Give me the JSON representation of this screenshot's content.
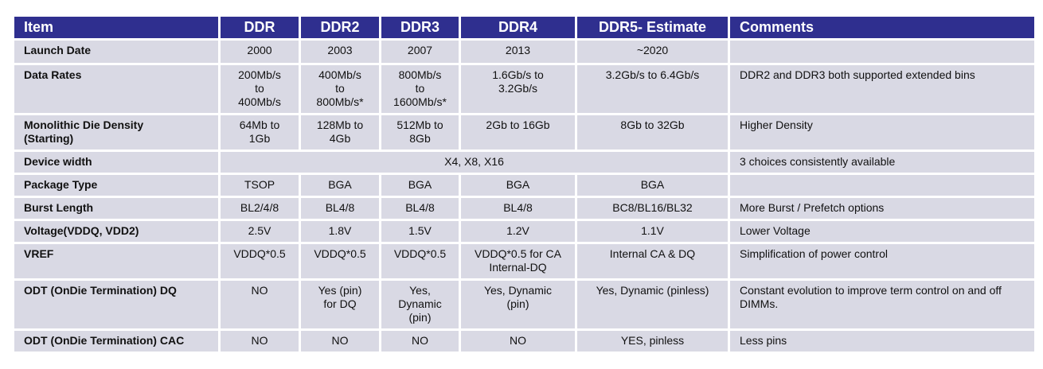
{
  "header": [
    "Item",
    "DDR",
    "DDR2",
    "DDR3",
    "DDR4",
    "DDR5- Estimate",
    "Comments"
  ],
  "rows": [
    {
      "item": [
        "Launch Date"
      ],
      "ddr": [
        "2000"
      ],
      "ddr2": [
        "2003"
      ],
      "ddr3": [
        "2007"
      ],
      "ddr4": [
        "2013"
      ],
      "ddr5": [
        "~2020"
      ],
      "comment": [
        ""
      ]
    },
    {
      "item": [
        "Data Rates"
      ],
      "ddr": [
        "200Mb/s",
        "to",
        "400Mb/s"
      ],
      "ddr2": [
        "400Mb/s",
        "to",
        "800Mb/s*"
      ],
      "ddr3": [
        "800Mb/s",
        "to",
        "1600Mb/s*"
      ],
      "ddr4": [
        "1.6Gb/s to",
        "3.2Gb/s"
      ],
      "ddr5": [
        "3.2Gb/s to 6.4Gb/s"
      ],
      "comment": [
        "DDR2 and DDR3 both supported extended bins"
      ]
    },
    {
      "item": [
        "Monolithic Die Density",
        "(Starting)"
      ],
      "ddr": [
        "64Mb to",
        "1Gb"
      ],
      "ddr2": [
        "128Mb to",
        "4Gb"
      ],
      "ddr3": [
        "512Mb to",
        "8Gb"
      ],
      "ddr4": [
        "2Gb to 16Gb"
      ],
      "ddr5": [
        "8Gb to 32Gb"
      ],
      "comment": [
        "Higher Density"
      ]
    },
    {
      "item": [
        "Device width"
      ],
      "span": [
        "X4, X8, X16"
      ],
      "comment": [
        "3 choices consistently available"
      ]
    },
    {
      "item": [
        "Package Type"
      ],
      "ddr": [
        "TSOP"
      ],
      "ddr2": [
        "BGA"
      ],
      "ddr3": [
        "BGA"
      ],
      "ddr4": [
        "BGA"
      ],
      "ddr5": [
        "BGA"
      ],
      "comment": [
        ""
      ]
    },
    {
      "item": [
        "Burst Length"
      ],
      "ddr": [
        "BL2/4/8"
      ],
      "ddr2": [
        "BL4/8"
      ],
      "ddr3": [
        "BL4/8"
      ],
      "ddr4": [
        "BL4/8"
      ],
      "ddr5": [
        "BC8/BL16/BL32"
      ],
      "comment": [
        "More Burst / Prefetch options"
      ]
    },
    {
      "item": [
        "Voltage(VDDQ, VDD2)"
      ],
      "ddr": [
        "2.5V"
      ],
      "ddr2": [
        "1.8V"
      ],
      "ddr3": [
        "1.5V"
      ],
      "ddr4": [
        "1.2V"
      ],
      "ddr5": [
        "1.1V"
      ],
      "comment": [
        "Lower Voltage"
      ]
    },
    {
      "item": [
        "VREF"
      ],
      "ddr": [
        "VDDQ*0.5"
      ],
      "ddr2": [
        "VDDQ*0.5"
      ],
      "ddr3": [
        "VDDQ*0.5"
      ],
      "ddr4": [
        "VDDQ*0.5 for CA",
        "Internal-DQ"
      ],
      "ddr5": [
        "Internal CA & DQ"
      ],
      "comment": [
        "Simplification of power control"
      ]
    },
    {
      "item": [
        "ODT (OnDie Termination) DQ"
      ],
      "ddr": [
        "NO"
      ],
      "ddr2": [
        "Yes (pin)",
        "for DQ"
      ],
      "ddr3": [
        "Yes,",
        "Dynamic",
        "(pin)"
      ],
      "ddr4": [
        "Yes, Dynamic",
        "(pin)"
      ],
      "ddr5": [
        "Yes, Dynamic (pinless)"
      ],
      "comment": [
        "Constant evolution to improve term control on and off",
        "DIMMs."
      ]
    },
    {
      "item": [
        "ODT (OnDie Termination) CAC"
      ],
      "ddr": [
        "NO"
      ],
      "ddr2": [
        "NO"
      ],
      "ddr3": [
        "NO"
      ],
      "ddr4": [
        "NO"
      ],
      "ddr5": [
        "YES, pinless"
      ],
      "comment": [
        "Less pins"
      ]
    }
  ]
}
